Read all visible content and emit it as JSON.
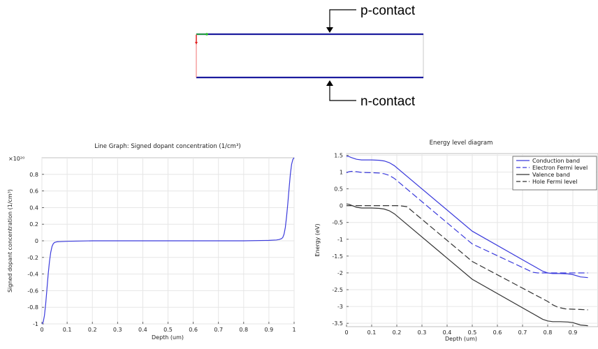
{
  "diagram": {
    "top_label": "p-contact",
    "bottom_label": "n-contact"
  },
  "chart_data": [
    {
      "type": "line",
      "title": "Line Graph: Signed dopant concentration (1/cm³)",
      "xlabel": "Depth (um)",
      "ylabel": "Signed dopant concentration (1/cm³)",
      "y_multiplier": "×10²⁰",
      "xlim": [
        0,
        1
      ],
      "ylim": [
        -1.0,
        1.0
      ],
      "xticks": [
        "0",
        "0.1",
        "0.2",
        "0.3",
        "0.4",
        "0.5",
        "0.6",
        "0.7",
        "0.8",
        "0.9",
        "1"
      ],
      "yticks": [
        "-1",
        "-0.8",
        "-0.6",
        "-0.4",
        "-0.2",
        "0",
        "0.2",
        "0.4",
        "0.6",
        "0.8"
      ],
      "grid": true,
      "series": [
        {
          "color": "#3b3bdc",
          "dash": "solid",
          "x": [
            0,
            0.005,
            0.01,
            0.015,
            0.02,
            0.025,
            0.03,
            0.035,
            0.04,
            0.045,
            0.05,
            0.055,
            0.06,
            0.07,
            0.1,
            0.2,
            0.5,
            0.8,
            0.9,
            0.93,
            0.94,
            0.95,
            0.955,
            0.96,
            0.965,
            0.97,
            0.975,
            0.98,
            0.985,
            0.99,
            0.995,
            1.0
          ],
          "y": [
            -1.0,
            -0.98,
            -0.9,
            -0.76,
            -0.58,
            -0.4,
            -0.25,
            -0.14,
            -0.07,
            -0.035,
            -0.02,
            -0.015,
            -0.012,
            -0.01,
            -0.006,
            0,
            0,
            0,
            0.005,
            0.01,
            0.015,
            0.025,
            0.04,
            0.08,
            0.16,
            0.29,
            0.45,
            0.63,
            0.8,
            0.92,
            0.98,
            1.0
          ]
        }
      ]
    },
    {
      "type": "line",
      "title": "Energy level diagram",
      "xlabel": "Depth (um)",
      "ylabel": "Energy (eV)",
      "xlim": [
        0,
        1.0
      ],
      "ylim": [
        -3.6,
        1.55
      ],
      "xticks": [
        "0",
        "0.1",
        "0.2",
        "0.3",
        "0.4",
        "0.5",
        "0.6",
        "0.7",
        "0.8",
        "0.9"
      ],
      "yticks": [
        "1.5",
        "1",
        "0.5",
        "0",
        "-0.5",
        "-1",
        "-1.5",
        "-2",
        "-2.5",
        "-3",
        "-3.5"
      ],
      "grid": true,
      "legend_position": "top-right",
      "series": [
        {
          "name": "Conduction band",
          "color": "#3b3bdc",
          "dash": "solid",
          "x": [
            0,
            0.01,
            0.02,
            0.04,
            0.06,
            0.1,
            0.13,
            0.15,
            0.17,
            0.19,
            0.5,
            0.78,
            0.8,
            0.82,
            0.85,
            0.88,
            0.9,
            0.93,
            0.96
          ],
          "y": [
            1.47,
            1.46,
            1.43,
            1.38,
            1.36,
            1.36,
            1.35,
            1.33,
            1.28,
            1.19,
            -0.76,
            -1.95,
            -2.0,
            -2.02,
            -2.02,
            -2.03,
            -2.05,
            -2.12,
            -2.14
          ]
        },
        {
          "name": "Electron Fermi level",
          "color": "#3b3bdc",
          "dash": "long",
          "x": [
            0,
            0.01,
            0.02,
            0.04,
            0.06,
            0.1,
            0.13,
            0.15,
            0.17,
            0.19,
            0.5,
            0.74,
            0.76,
            0.96
          ],
          "y": [
            0.98,
            1.01,
            1.02,
            1.01,
            0.99,
            0.98,
            0.97,
            0.95,
            0.9,
            0.81,
            -1.14,
            -1.98,
            -2.0,
            -2.0
          ]
        },
        {
          "name": "Valence band",
          "color": "#333333",
          "dash": "solid",
          "x": [
            0,
            0.01,
            0.02,
            0.04,
            0.06,
            0.1,
            0.13,
            0.15,
            0.17,
            0.19,
            0.5,
            0.78,
            0.8,
            0.82,
            0.85,
            0.88,
            0.9,
            0.93,
            0.96
          ],
          "y": [
            0.05,
            0.04,
            0.01,
            -0.05,
            -0.07,
            -0.07,
            -0.08,
            -0.1,
            -0.15,
            -0.24,
            -2.19,
            -3.38,
            -3.43,
            -3.45,
            -3.45,
            -3.46,
            -3.48,
            -3.55,
            -3.57
          ]
        },
        {
          "name": "Hole Fermi level",
          "color": "#333333",
          "dash": "long",
          "x": [
            0,
            0.02,
            0.05,
            0.1,
            0.2,
            0.22,
            0.24,
            0.5,
            0.8,
            0.82,
            0.84,
            0.87,
            0.9,
            0.93,
            0.96
          ],
          "y": [
            0.0,
            0.0,
            0.0,
            0.0,
            0.0,
            -0.01,
            -0.03,
            -1.66,
            -2.85,
            -2.95,
            -3.02,
            -3.07,
            -3.08,
            -3.09,
            -3.1
          ]
        }
      ]
    }
  ]
}
